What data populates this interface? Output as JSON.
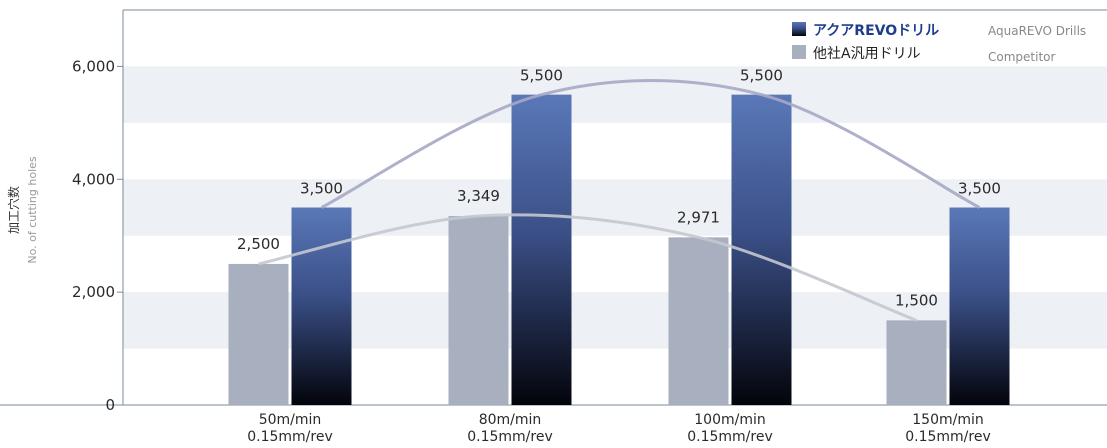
{
  "chart_data": {
    "type": "bar",
    "categories": [
      [
        "50m/min",
        "0.15mm/rev"
      ],
      [
        "80m/min",
        "0.15mm/rev"
      ],
      [
        "100m/min",
        "0.15mm/rev"
      ],
      [
        "150m/min",
        "0.15mm/rev"
      ]
    ],
    "series": [
      {
        "name": "他社A汎用ドリル",
        "name_en": "Competitor",
        "values": [
          2500,
          3349,
          2971,
          1500
        ],
        "color": "#a8afbf"
      },
      {
        "name": "アクアREVOドリル",
        "name_en": "AquaREVO Drills",
        "values": [
          3500,
          5500,
          5500,
          3500
        ],
        "color": "#4a67a8"
      }
    ],
    "data_labels": [
      [
        "2,500",
        "3,349",
        "2,971",
        "1,500"
      ],
      [
        "3,500",
        "5,500",
        "5,500",
        "3,500"
      ]
    ],
    "ylabel": "加工穴数",
    "ylabel_en": "No. of cutting holes",
    "ylim": [
      0,
      7000
    ],
    "yticks": [
      0,
      2000,
      4000,
      6000
    ],
    "ytick_labels": [
      "0",
      "2,000",
      "4,000",
      "6,000"
    ],
    "grid": true,
    "legend_position": "top-right",
    "trend_lines": true
  },
  "colors": {
    "band_light": "#edf0f4",
    "axis": "#7a8a9c",
    "competitor_bar": "#a8afbf",
    "revo_bar_top": "#5a78b8",
    "revo_bar_bottom": "#03040b",
    "legend_revo_text": "#1c3e8a",
    "revo_trend": "#a6a8c6",
    "competitor_trend": "#c5c8d0"
  }
}
